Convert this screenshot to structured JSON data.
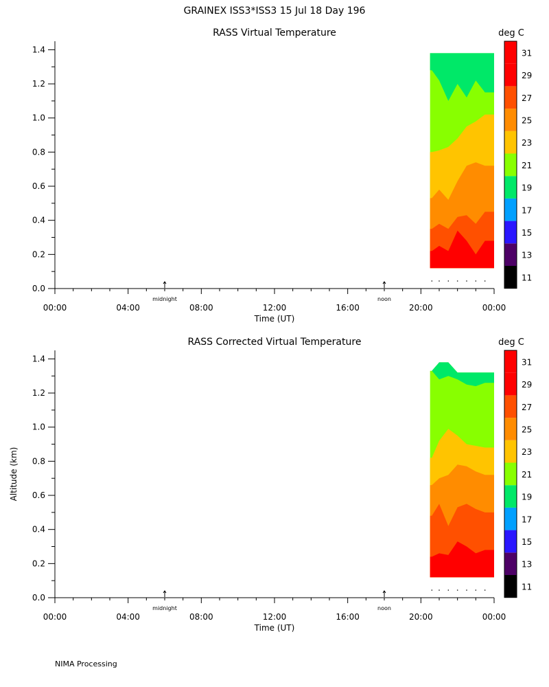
{
  "figure_title": "GRAINEX ISS3*ISS3  15 Jul 18 Day 196",
  "footer": "NIMA Processing",
  "colorbar": {
    "unit": "deg C",
    "levels": [
      11,
      13,
      15,
      17,
      19,
      21,
      23,
      25,
      27,
      29,
      31
    ],
    "colors": [
      "#000000",
      "#4d0066",
      "#2a16ff",
      "#00a0ff",
      "#00e868",
      "#88ff00",
      "#ffc400",
      "#ff8c00",
      "#ff5000",
      "#ff0000",
      "#ff0000"
    ]
  },
  "chart_data": [
    {
      "type": "heatmap",
      "title": "RASS Virtual Temperature",
      "xlabel": "Time (UT)",
      "ylabel": "",
      "xlim": [
        0,
        24
      ],
      "ylim": [
        0,
        1.45
      ],
      "x_tick_labels": [
        "00:00",
        "04:00",
        "08:00",
        "12:00",
        "16:00",
        "20:00",
        "00:00"
      ],
      "y_tick_labels": [
        "0.0",
        "0.2",
        "0.4",
        "0.6",
        "0.8",
        "1.0",
        "1.2",
        "1.4"
      ],
      "markers": [
        {
          "label": "midnight",
          "x": 6
        },
        {
          "label": "noon",
          "x": 18
        }
      ],
      "data_window": {
        "x": [
          20.5,
          24
        ],
        "y": [
          0.12,
          1.38
        ]
      },
      "sample_times": [
        20.6,
        21.0,
        21.5,
        22.0,
        22.5,
        23.0,
        23.5
      ],
      "isotherms": [
        {
          "min_value": 21,
          "tops": [
            1.38,
            1.38,
            1.38,
            1.38,
            1.38,
            1.38,
            1.38
          ]
        },
        {
          "min_value": 23,
          "tops": [
            0.8,
            0.81,
            0.83,
            0.88,
            0.95,
            0.98,
            1.02
          ]
        },
        {
          "min_value": 25,
          "tops": [
            0.53,
            0.58,
            0.52,
            0.63,
            0.72,
            0.74,
            0.72
          ]
        },
        {
          "min_value": 27,
          "tops": [
            0.35,
            0.38,
            0.35,
            0.42,
            0.43,
            0.38,
            0.45
          ]
        },
        {
          "min_value": 29,
          "tops": [
            0.22,
            0.25,
            0.22,
            0.34,
            0.28,
            0.2,
            0.28
          ]
        }
      ],
      "top_patches": [
        {
          "min_value": 19,
          "tops": [
            1.38,
            1.38,
            1.38,
            1.38,
            1.38,
            1.38,
            1.38
          ],
          "bottoms": [
            1.28,
            1.22,
            1.1,
            1.2,
            1.12,
            1.22,
            1.15
          ]
        }
      ]
    },
    {
      "type": "heatmap",
      "title": "RASS Corrected Virtual Temperature",
      "xlabel": "Time (UT)",
      "ylabel": "Altitude (km)",
      "xlim": [
        0,
        24
      ],
      "ylim": [
        0,
        1.45
      ],
      "x_tick_labels": [
        "00:00",
        "04:00",
        "08:00",
        "12:00",
        "16:00",
        "20:00",
        "00:00"
      ],
      "y_tick_labels": [
        "0.0",
        "0.2",
        "0.4",
        "0.6",
        "0.8",
        "1.0",
        "1.2",
        "1.4"
      ],
      "markers": [
        {
          "label": "midnight",
          "x": 6
        },
        {
          "label": "noon",
          "x": 18
        }
      ],
      "data_window": {
        "x": [
          20.5,
          24
        ],
        "y": [
          0.12,
          1.38
        ]
      },
      "sample_times": [
        20.6,
        21.0,
        21.5,
        22.0,
        22.5,
        23.0,
        23.5
      ],
      "isotherms": [
        {
          "min_value": 21,
          "tops": [
            1.33,
            1.38,
            1.38,
            1.32,
            1.32,
            1.32,
            1.32
          ]
        },
        {
          "min_value": 23,
          "tops": [
            0.82,
            0.92,
            0.99,
            0.95,
            0.9,
            0.89,
            0.88
          ]
        },
        {
          "min_value": 25,
          "tops": [
            0.66,
            0.7,
            0.72,
            0.78,
            0.77,
            0.74,
            0.72
          ]
        },
        {
          "min_value": 27,
          "tops": [
            0.48,
            0.55,
            0.42,
            0.53,
            0.55,
            0.52,
            0.5
          ]
        },
        {
          "min_value": 29,
          "tops": [
            0.24,
            0.26,
            0.25,
            0.33,
            0.3,
            0.26,
            0.28
          ]
        }
      ],
      "top_patches": [
        {
          "min_value": 19,
          "tops": [
            1.33,
            1.38,
            1.38,
            1.32,
            1.32,
            1.32,
            1.32
          ],
          "bottoms": [
            1.33,
            1.28,
            1.3,
            1.28,
            1.25,
            1.24,
            1.26
          ]
        }
      ]
    }
  ]
}
